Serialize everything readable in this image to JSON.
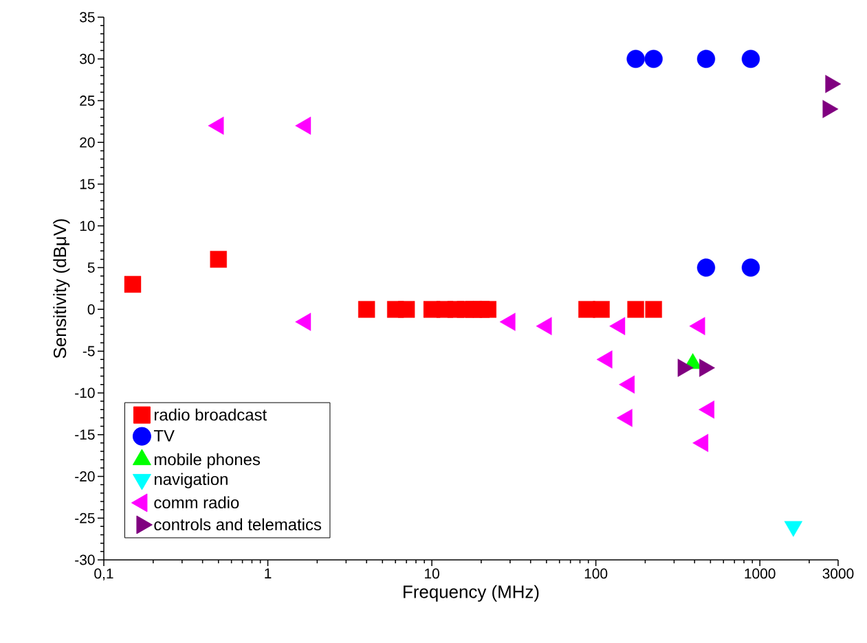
{
  "chart_data": {
    "type": "scatter",
    "xlabel": "Frequency (MHz)",
    "ylabel": "Sensitivity (dBμV)",
    "log": "x",
    "xlim": [
      0.1,
      3000
    ],
    "ylim": [
      -30,
      35
    ],
    "xticks": [
      {
        "value": 0.1,
        "label": "0,1"
      },
      1,
      10,
      100,
      1000,
      3000
    ],
    "yticks": [
      -30,
      -25,
      -20,
      -15,
      -10,
      -5,
      0,
      5,
      10,
      15,
      20,
      25,
      30,
      35
    ],
    "legend": "bottom left",
    "grid": false,
    "series": [
      {
        "name": "radio broadcast",
        "color": "#ff0000",
        "marker": "square",
        "x": [
          0.15,
          0.5,
          4,
          6,
          7,
          10,
          12,
          14,
          16,
          18,
          20,
          22,
          88,
          108,
          175,
          225
        ],
        "values": [
          3,
          6,
          0,
          0,
          0,
          0,
          0,
          0,
          0,
          0,
          0,
          0,
          0,
          0,
          0,
          0
        ]
      },
      {
        "name": "TV",
        "color": "#0000ff",
        "marker": "circle",
        "x": [
          175,
          225,
          470,
          880,
          470,
          880
        ],
        "values": [
          30,
          30,
          30,
          30,
          5,
          5
        ]
      },
      {
        "name": "mobile phones",
        "color": "#00ff00",
        "marker": "triangle",
        "x": [
          390
        ],
        "values": [
          -6.5
        ]
      },
      {
        "name": "navigation",
        "color": "#00ffff",
        "marker": "triangle-down",
        "x": [
          1600
        ],
        "values": [
          -26
        ]
      },
      {
        "name": "comm radio",
        "color": "#ff00ff",
        "marker": "triangle-left",
        "x": [
          0.5,
          1.7,
          1.7,
          30,
          50,
          140,
          430,
          117,
          160,
          155,
          490,
          450
        ],
        "values": [
          22,
          22,
          -1.5,
          -1.5,
          -2,
          -2,
          -2,
          -6,
          -9,
          -13,
          -12,
          -16
        ]
      },
      {
        "name": "controls and telematics",
        "color": "#800080",
        "marker": "triangle-right",
        "x": [
          340,
          460,
          2700,
          2600
        ],
        "values": [
          -7,
          -7,
          27,
          24
        ]
      }
    ]
  }
}
